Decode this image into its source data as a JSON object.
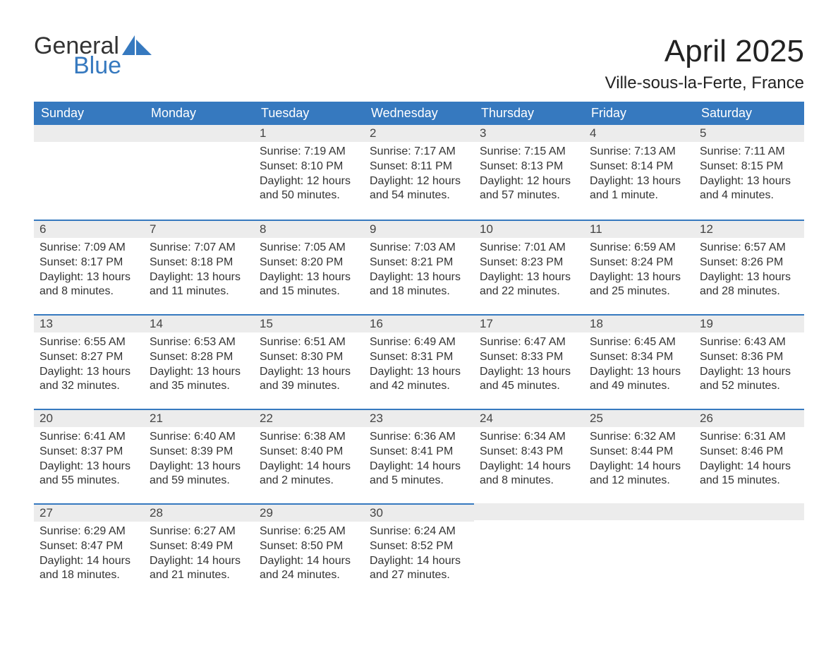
{
  "logo": {
    "word1": "General",
    "word2": "Blue",
    "icon_color": "#3679bf",
    "text_dark": "#333333"
  },
  "title": "April 2025",
  "location": "Ville-sous-la-Ferte, France",
  "colors": {
    "header_bg": "#3679bf",
    "header_text": "#ffffff",
    "band_bg": "#ececec",
    "band_border": "#3679bf",
    "body_text": "#333333",
    "page_bg": "#ffffff"
  },
  "typography": {
    "title_fontsize": 44,
    "location_fontsize": 24,
    "header_fontsize": 18,
    "daynum_fontsize": 17,
    "body_fontsize": 16
  },
  "weekdays": [
    "Sunday",
    "Monday",
    "Tuesday",
    "Wednesday",
    "Thursday",
    "Friday",
    "Saturday"
  ],
  "labels": {
    "sunrise": "Sunrise:",
    "sunset": "Sunset:",
    "daylight": "Daylight:"
  },
  "weeks": [
    [
      null,
      null,
      {
        "n": "1",
        "sunrise": "7:19 AM",
        "sunset": "8:10 PM",
        "daylight": "12 hours and 50 minutes."
      },
      {
        "n": "2",
        "sunrise": "7:17 AM",
        "sunset": "8:11 PM",
        "daylight": "12 hours and 54 minutes."
      },
      {
        "n": "3",
        "sunrise": "7:15 AM",
        "sunset": "8:13 PM",
        "daylight": "12 hours and 57 minutes."
      },
      {
        "n": "4",
        "sunrise": "7:13 AM",
        "sunset": "8:14 PM",
        "daylight": "13 hours and 1 minute."
      },
      {
        "n": "5",
        "sunrise": "7:11 AM",
        "sunset": "8:15 PM",
        "daylight": "13 hours and 4 minutes."
      }
    ],
    [
      {
        "n": "6",
        "sunrise": "7:09 AM",
        "sunset": "8:17 PM",
        "daylight": "13 hours and 8 minutes."
      },
      {
        "n": "7",
        "sunrise": "7:07 AM",
        "sunset": "8:18 PM",
        "daylight": "13 hours and 11 minutes."
      },
      {
        "n": "8",
        "sunrise": "7:05 AM",
        "sunset": "8:20 PM",
        "daylight": "13 hours and 15 minutes."
      },
      {
        "n": "9",
        "sunrise": "7:03 AM",
        "sunset": "8:21 PM",
        "daylight": "13 hours and 18 minutes."
      },
      {
        "n": "10",
        "sunrise": "7:01 AM",
        "sunset": "8:23 PM",
        "daylight": "13 hours and 22 minutes."
      },
      {
        "n": "11",
        "sunrise": "6:59 AM",
        "sunset": "8:24 PM",
        "daylight": "13 hours and 25 minutes."
      },
      {
        "n": "12",
        "sunrise": "6:57 AM",
        "sunset": "8:26 PM",
        "daylight": "13 hours and 28 minutes."
      }
    ],
    [
      {
        "n": "13",
        "sunrise": "6:55 AM",
        "sunset": "8:27 PM",
        "daylight": "13 hours and 32 minutes."
      },
      {
        "n": "14",
        "sunrise": "6:53 AM",
        "sunset": "8:28 PM",
        "daylight": "13 hours and 35 minutes."
      },
      {
        "n": "15",
        "sunrise": "6:51 AM",
        "sunset": "8:30 PM",
        "daylight": "13 hours and 39 minutes."
      },
      {
        "n": "16",
        "sunrise": "6:49 AM",
        "sunset": "8:31 PM",
        "daylight": "13 hours and 42 minutes."
      },
      {
        "n": "17",
        "sunrise": "6:47 AM",
        "sunset": "8:33 PM",
        "daylight": "13 hours and 45 minutes."
      },
      {
        "n": "18",
        "sunrise": "6:45 AM",
        "sunset": "8:34 PM",
        "daylight": "13 hours and 49 minutes."
      },
      {
        "n": "19",
        "sunrise": "6:43 AM",
        "sunset": "8:36 PM",
        "daylight": "13 hours and 52 minutes."
      }
    ],
    [
      {
        "n": "20",
        "sunrise": "6:41 AM",
        "sunset": "8:37 PM",
        "daylight": "13 hours and 55 minutes."
      },
      {
        "n": "21",
        "sunrise": "6:40 AM",
        "sunset": "8:39 PM",
        "daylight": "13 hours and 59 minutes."
      },
      {
        "n": "22",
        "sunrise": "6:38 AM",
        "sunset": "8:40 PM",
        "daylight": "14 hours and 2 minutes."
      },
      {
        "n": "23",
        "sunrise": "6:36 AM",
        "sunset": "8:41 PM",
        "daylight": "14 hours and 5 minutes."
      },
      {
        "n": "24",
        "sunrise": "6:34 AM",
        "sunset": "8:43 PM",
        "daylight": "14 hours and 8 minutes."
      },
      {
        "n": "25",
        "sunrise": "6:32 AM",
        "sunset": "8:44 PM",
        "daylight": "14 hours and 12 minutes."
      },
      {
        "n": "26",
        "sunrise": "6:31 AM",
        "sunset": "8:46 PM",
        "daylight": "14 hours and 15 minutes."
      }
    ],
    [
      {
        "n": "27",
        "sunrise": "6:29 AM",
        "sunset": "8:47 PM",
        "daylight": "14 hours and 18 minutes."
      },
      {
        "n": "28",
        "sunrise": "6:27 AM",
        "sunset": "8:49 PM",
        "daylight": "14 hours and 21 minutes."
      },
      {
        "n": "29",
        "sunrise": "6:25 AM",
        "sunset": "8:50 PM",
        "daylight": "14 hours and 24 minutes."
      },
      {
        "n": "30",
        "sunrise": "6:24 AM",
        "sunset": "8:52 PM",
        "daylight": "14 hours and 27 minutes."
      },
      null,
      null,
      null
    ]
  ]
}
